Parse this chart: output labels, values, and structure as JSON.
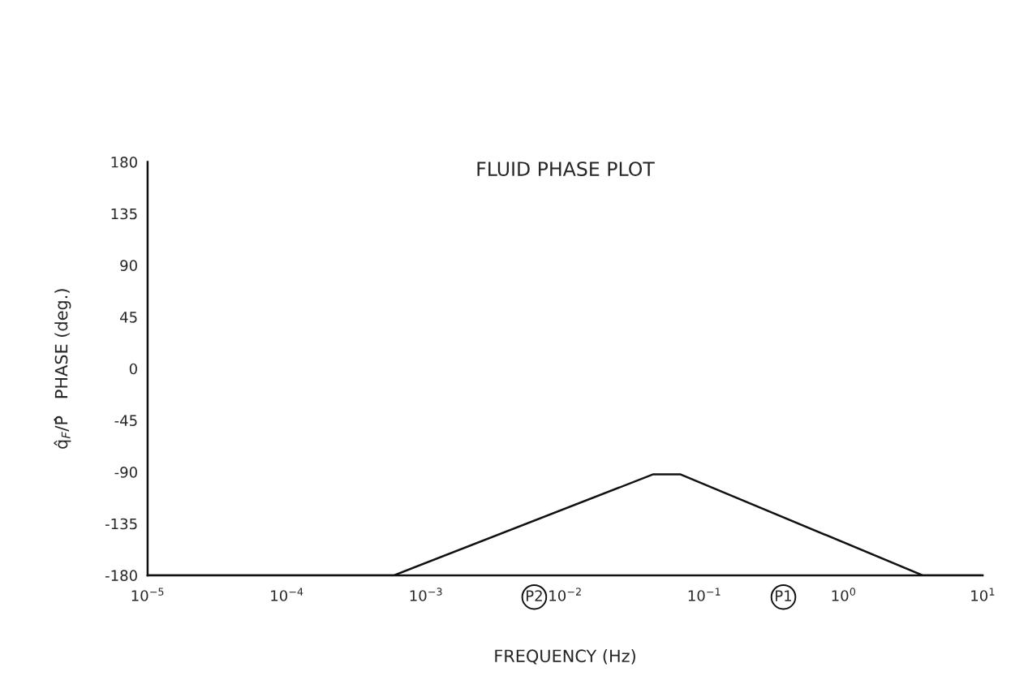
{
  "chart_data": {
    "type": "line",
    "title": "FLUID PHASE PLOT",
    "xlabel": "FREQUENCY (Hz)",
    "ylabel": "q̂$_{F}$/P̂   PHASE (deg.)",
    "log": "x",
    "grid": false,
    "legend": false,
    "marker": "none",
    "line_style": "solid",
    "x": [
      1e-05,
      0.00059,
      0.043,
      0.067,
      3.7,
      10
    ],
    "series": [
      {
        "color": "#111111",
        "values": [
          -180,
          -180,
          -92,
          -92,
          -180,
          -180
        ]
      }
    ],
    "xlim": [
      1e-05,
      10
    ],
    "ylim": [
      -180,
      180
    ],
    "xticks": [
      {
        "value": 1e-05,
        "label": "10$^{−5}$"
      },
      {
        "value": 0.0001,
        "label": "10$^{−4}$"
      },
      {
        "value": 0.001,
        "label": "10$^{−3}$"
      },
      {
        "value": 0.006,
        "label": "P2"
      },
      {
        "value": 0.01,
        "label": "10$^{−2}$"
      },
      {
        "value": 0.1,
        "label": "10$^{−1}$"
      },
      {
        "value": 0.37,
        "label": "P1"
      },
      {
        "value": 1,
        "label": "10$^{0}$"
      },
      {
        "value": 10,
        "label": "10$^{1}$"
      }
    ],
    "yticks": [
      -180,
      -135,
      -90,
      -45,
      0,
      45,
      90,
      135,
      180
    ]
  }
}
